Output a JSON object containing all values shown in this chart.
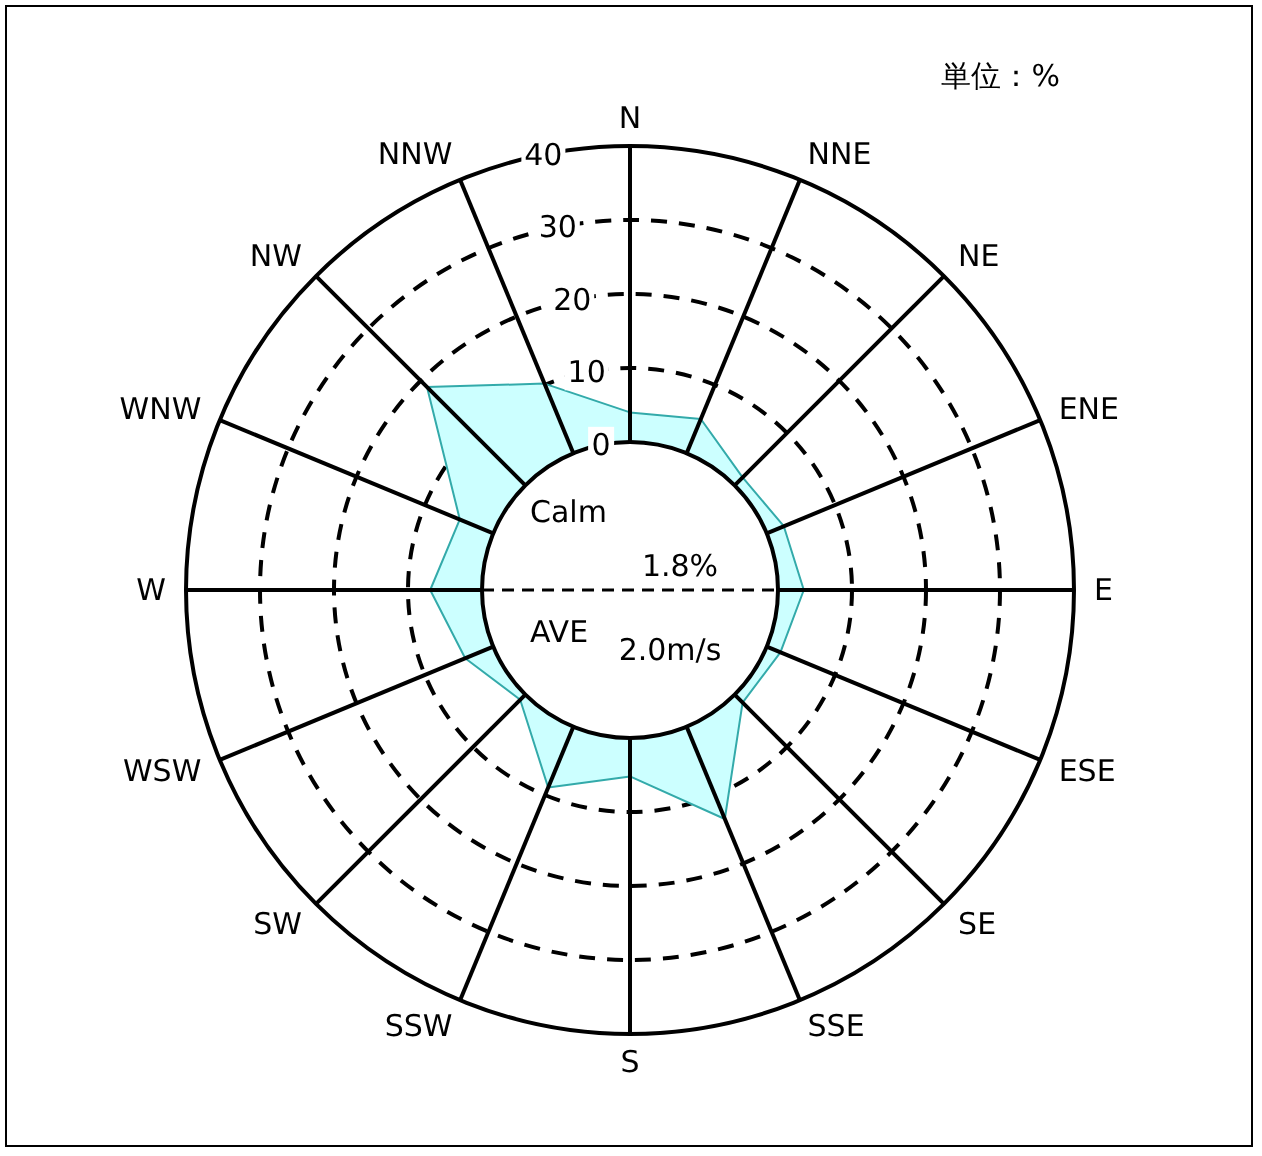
{
  "chart_data": {
    "type": "radar",
    "categories": [
      "N",
      "NNE",
      "NE",
      "ENE",
      "E",
      "ESE",
      "SE",
      "SSE",
      "S",
      "SSW",
      "SW",
      "WSW",
      "W",
      "WNW",
      "NW",
      "NNW"
    ],
    "series": [
      {
        "color": "#ccffff",
        "values": [
          4.0,
          5.0,
          1.5,
          2.5,
          3.5,
          2.0,
          1.5,
          13.5,
          5.2,
          8.9,
          1.0,
          4.1,
          7.0,
          4.9,
          18.8,
          10.2
        ]
      }
    ],
    "ylim": [
      -20,
      40
    ],
    "yticks": [
      0,
      10,
      20,
      30,
      40
    ],
    "grid": true,
    "annotations": [
      "単位：%",
      "Calm",
      "1.8%",
      "AVE",
      "2.0m/s"
    ]
  }
}
